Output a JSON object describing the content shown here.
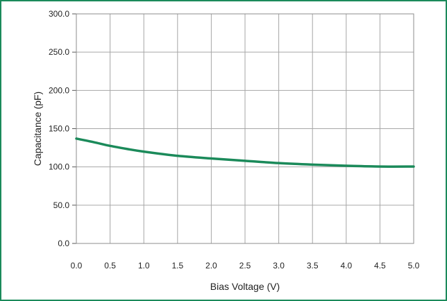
{
  "chart_data": {
    "type": "line",
    "title": "",
    "xlabel": "Bias Voltage (V)",
    "ylabel": "Capacitance (pF)",
    "xlim": [
      0.0,
      5.0
    ],
    "ylim": [
      0.0,
      300.0
    ],
    "x_ticks": [
      "0.0",
      "0.5",
      "1.0",
      "1.5",
      "2.0",
      "2.5",
      "3.0",
      "3.5",
      "4.0",
      "4.5",
      "5.0"
    ],
    "y_ticks": [
      "0.0",
      "50.0",
      "100.0",
      "150.0",
      "200.0",
      "250.0",
      "300.0"
    ],
    "grid": true,
    "legend": "none",
    "series": [
      {
        "color": "#1b8a5a",
        "x": [
          0.0,
          0.25,
          0.5,
          0.75,
          1.0,
          1.5,
          2.0,
          2.5,
          3.0,
          3.5,
          4.0,
          4.5,
          5.0
        ],
        "y": [
          137.0,
          132.5,
          127.5,
          123.5,
          120.0,
          114.5,
          111.0,
          108.0,
          105.0,
          103.0,
          101.5,
          100.5,
          100.5
        ]
      }
    ]
  }
}
